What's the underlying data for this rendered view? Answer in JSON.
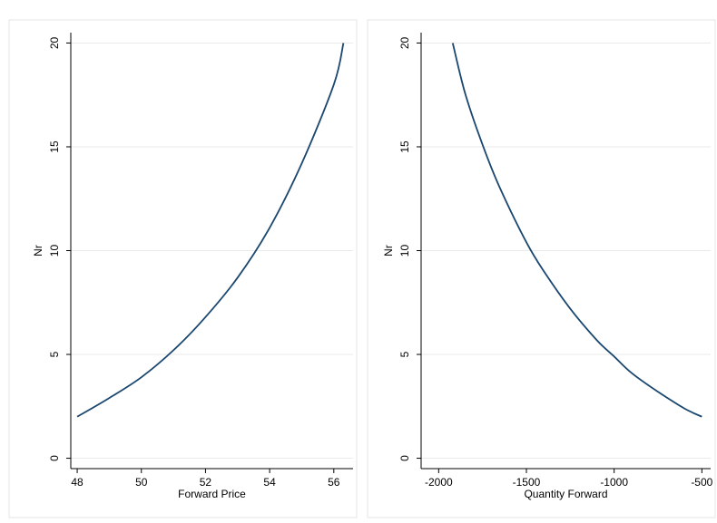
{
  "chart_data": [
    {
      "type": "line",
      "xlabel": "Forward Price",
      "ylabel": "Nr",
      "xlim": [
        47.8,
        56.6
      ],
      "ylim": [
        -0.5,
        20.5
      ],
      "xticks": [
        48,
        50,
        52,
        54,
        56
      ],
      "yticks": [
        0,
        5,
        10,
        15,
        20
      ],
      "grid": "horizontal",
      "series": [
        {
          "color": "#1a476f",
          "x": [
            48.0,
            49.0,
            50.0,
            51.0,
            52.0,
            53.0,
            54.0,
            55.0,
            56.0,
            56.3
          ],
          "y": [
            2.0,
            2.9,
            3.9,
            5.2,
            6.8,
            8.7,
            11.1,
            14.2,
            18.0,
            20.0
          ]
        }
      ]
    },
    {
      "type": "line",
      "xlabel": "Quantity Forward",
      "ylabel": "Nr",
      "xlim": [
        -2100,
        -450
      ],
      "ylim": [
        -0.5,
        20.5
      ],
      "xticks": [
        -2000,
        -1500,
        -1000,
        -500
      ],
      "yticks": [
        0,
        5,
        10,
        15,
        20
      ],
      "grid": "horizontal",
      "series": [
        {
          "color": "#1a476f",
          "x": [
            -1920,
            -1850,
            -1750,
            -1650,
            -1500,
            -1400,
            -1250,
            -1100,
            -1000,
            -900,
            -750,
            -600,
            -500
          ],
          "y": [
            20.0,
            17.6,
            15.1,
            13.0,
            10.4,
            9.0,
            7.2,
            5.7,
            4.9,
            4.1,
            3.2,
            2.4,
            2.0
          ]
        }
      ]
    }
  ]
}
